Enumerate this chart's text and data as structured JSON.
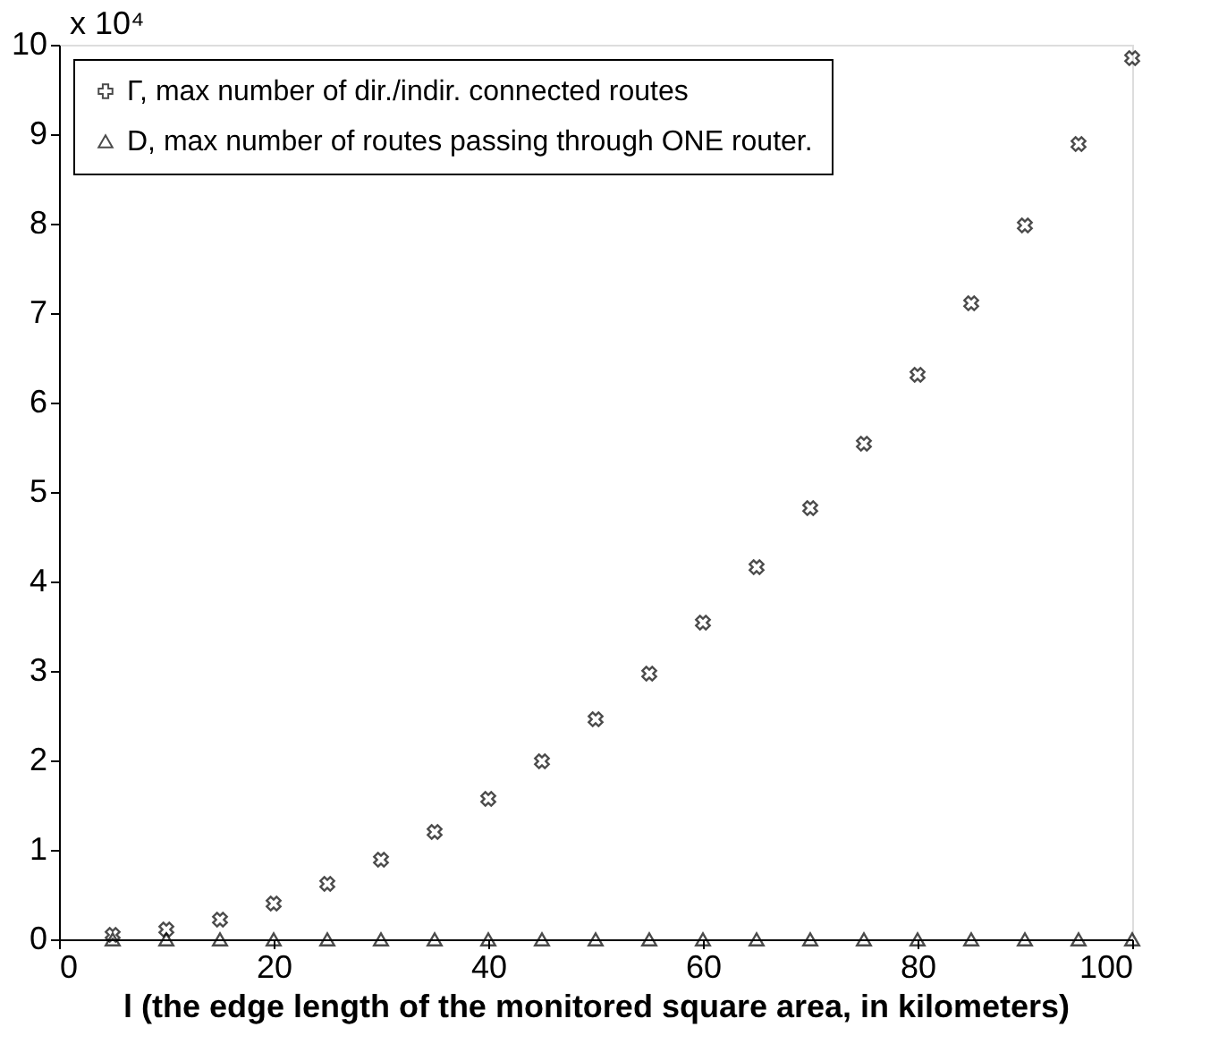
{
  "chart_data": {
    "type": "scatter",
    "xlabel": "l (the edge length of the monitored square area, in kilometers)",
    "x": [
      5,
      10,
      15,
      20,
      25,
      30,
      35,
      40,
      45,
      50,
      55,
      60,
      65,
      70,
      75,
      80,
      85,
      90,
      95,
      100
    ],
    "series": [
      {
        "name": "Γ, max number of dir./indir. connected routes",
        "color": "#000000",
        "marker": "cross",
        "values": [
          0.05,
          0.11,
          0.22,
          0.4,
          0.62,
          0.89,
          1.2,
          1.57,
          1.99,
          2.46,
          2.97,
          3.54,
          4.16,
          4.82,
          5.54,
          6.31,
          7.11,
          7.98,
          8.89,
          9.85
        ]
      },
      {
        "name": "D, max number of routes passing through ONE router.",
        "color": "#000000",
        "marker": "triangle",
        "values": [
          0,
          0,
          0,
          0,
          0,
          0,
          0,
          0,
          0,
          0,
          0,
          0,
          0,
          0,
          0,
          0,
          0,
          0,
          0,
          0
        ]
      }
    ],
    "annotations": [
      "x 10⁴"
    ],
    "xlim": [
      0,
      100
    ],
    "xticks": [
      0,
      20,
      40,
      60,
      80,
      100
    ],
    "ylim": [
      0,
      10
    ],
    "yticks": [
      0,
      1,
      2,
      3,
      4,
      5,
      6,
      7,
      8,
      9,
      10
    ],
    "grid": false,
    "legend": "top left"
  }
}
